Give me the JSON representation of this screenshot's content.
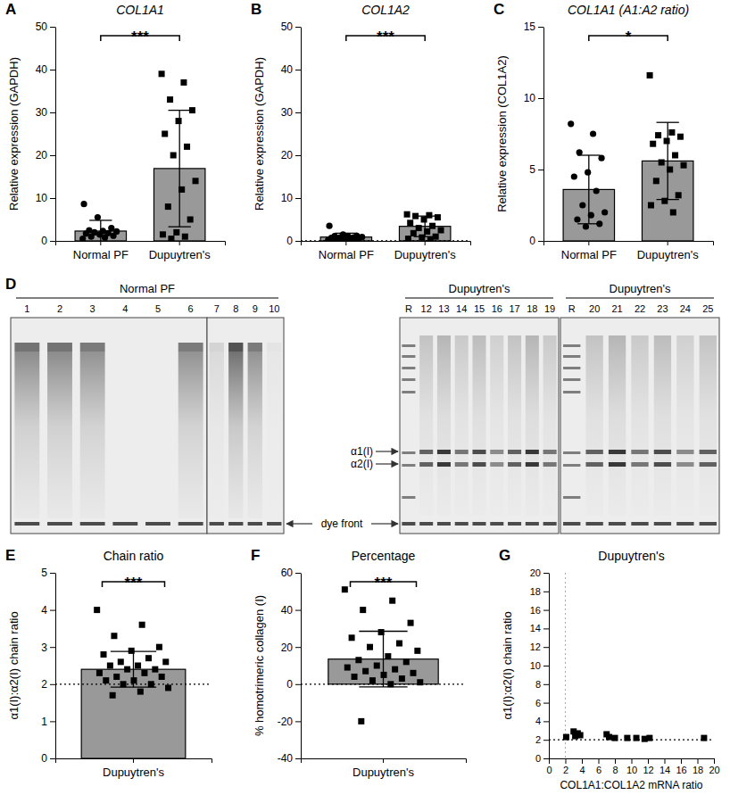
{
  "chart_data": [
    {
      "type": "bar",
      "panel": "A",
      "title": "COL1A1",
      "ylabel": "Relative expression (GAPDH)",
      "color": "#999999",
      "ylim": [
        0,
        50
      ],
      "yticks": [
        0,
        10,
        20,
        30,
        40,
        50
      ],
      "annotation": "***",
      "series": [
        {
          "name": "Normal PF",
          "marker": "circle",
          "values": [
            2.3
          ],
          "errors": [
            2.5
          ],
          "points": [
            0.5,
            0.8,
            1.0,
            1.2,
            1.5,
            1.7,
            1.8,
            2.0,
            2.2,
            2.3,
            2.5,
            3.0,
            5.5,
            8.6
          ]
        },
        {
          "name": "Dupuytren's",
          "marker": "square",
          "values": [
            16.9
          ],
          "errors": [
            13.6
          ],
          "points": [
            39,
            37,
            33,
            30.5,
            28,
            25,
            22,
            20,
            14,
            12,
            8,
            5,
            2,
            1.5,
            1,
            0.5
          ]
        }
      ]
    },
    {
      "type": "bar",
      "panel": "B",
      "title": "COL1A2",
      "ylabel": "Relative expression (GAPDH)",
      "color": "#999999",
      "ylim": [
        0,
        50
      ],
      "yticks": [
        0,
        10,
        20,
        30,
        40,
        50
      ],
      "annotation": "***",
      "ref_line": 0,
      "series": [
        {
          "name": "Normal PF",
          "marker": "circle",
          "values": [
            0.9
          ],
          "errors": [
            0.9
          ],
          "points": [
            0.2,
            0.3,
            0.4,
            0.5,
            0.6,
            0.7,
            0.8,
            0.8,
            0.9,
            1.0,
            1.1,
            1.2,
            1.5,
            3.5
          ]
        },
        {
          "name": "Dupuytren's",
          "marker": "square",
          "values": [
            3.4
          ],
          "errors": [
            2.4
          ],
          "points": [
            6.2,
            6.0,
            5.8,
            5.5,
            5.0,
            4.2,
            3.5,
            3.0,
            2.5,
            2.2,
            1.8,
            1.0,
            0.8,
            0.5,
            0.3
          ]
        }
      ]
    },
    {
      "type": "bar",
      "panel": "C",
      "title": "COL1A1 (A1:A2 ratio)",
      "ylabel": "Relative expression (COL1A2)",
      "color": "#999999",
      "ylim": [
        0,
        15
      ],
      "yticks": [
        0,
        5,
        10,
        15
      ],
      "annotation": "*",
      "series": [
        {
          "name": "Normal PF",
          "marker": "circle",
          "values": [
            3.6
          ],
          "errors": [
            2.4
          ],
          "points": [
            8.2,
            7.5,
            6.2,
            5.8,
            4.8,
            4.5,
            3.5,
            2.5,
            2.0,
            1.8,
            1.5,
            1.2,
            1.0
          ]
        },
        {
          "name": "Dupuytren's",
          "marker": "square",
          "values": [
            5.6
          ],
          "errors": [
            2.7
          ],
          "points": [
            11.6,
            7.6,
            7.4,
            7.3,
            7.0,
            6.8,
            6.0,
            5.5,
            5.3,
            5.0,
            4.2,
            3.2,
            2.8,
            2.5,
            2.0
          ]
        }
      ]
    },
    {
      "type": "gel",
      "panel": "D",
      "groups": [
        {
          "label": "Normal PF",
          "panels": [
            [
              "1",
              "2",
              "3",
              "4",
              "5",
              "6"
            ],
            [
              "7",
              "8",
              "9",
              "10"
            ]
          ]
        },
        {
          "label": "Dupuytren's",
          "panels": [
            [
              "R",
              "12",
              "13",
              "14",
              "15",
              "16",
              "17",
              "18",
              "19"
            ]
          ]
        },
        {
          "label": "Dupuytren's",
          "panels": [
            [
              "R",
              "20",
              "21",
              "22",
              "23",
              "24",
              "25"
            ]
          ]
        }
      ],
      "band_labels": [
        "α1(I)",
        "α2(I)"
      ],
      "dye_front": "dye front"
    },
    {
      "type": "bar",
      "panel": "E",
      "title": "Chain ratio",
      "ylabel": "α1(I):α2(I) chain ratio",
      "color": "#999999",
      "ylim": [
        0,
        5
      ],
      "yticks": [
        0,
        1,
        2,
        3,
        4,
        5
      ],
      "annotation": "***",
      "ref_line": 2,
      "series": [
        {
          "name": "Dupuytren's",
          "marker": "square",
          "values": [
            2.4
          ],
          "errors": [
            0.48
          ],
          "points": [
            4.0,
            3.6,
            3.3,
            3.0,
            2.9,
            2.8,
            2.7,
            2.6,
            2.6,
            2.5,
            2.5,
            2.4,
            2.4,
            2.3,
            2.3,
            2.2,
            2.2,
            2.1,
            2.1,
            2.0,
            2.0,
            1.9,
            1.8,
            1.7
          ]
        }
      ]
    },
    {
      "type": "bar",
      "panel": "F",
      "title": "Percentage",
      "ylabel": "% homotrimeric collagen (I)",
      "color": "#999999",
      "ylim": [
        -40,
        60
      ],
      "yticks": [
        -40,
        -20,
        0,
        20,
        40,
        60
      ],
      "annotation": "***",
      "ref_line": 0,
      "series": [
        {
          "name": "Dupuytren's",
          "marker": "square",
          "values": [
            13.5
          ],
          "errors": [
            15
          ],
          "points": [
            51,
            45,
            40,
            33,
            28,
            25,
            22,
            20,
            18,
            15,
            13,
            12,
            10,
            9,
            8,
            7,
            6,
            5,
            4,
            3,
            2,
            1,
            0,
            -20
          ]
        }
      ]
    },
    {
      "type": "scatter",
      "panel": "G",
      "title": "Dupuytren's",
      "xlabel": "COL1A1:COL1A2 mRNA ratio",
      "ylabel": "α1(I):α2(I) chain ratio",
      "color": "#000000",
      "marker": "square",
      "xlim": [
        0,
        20
      ],
      "xticks": [
        0,
        2,
        4,
        6,
        8,
        10,
        12,
        14,
        16,
        18,
        20
      ],
      "ylim": [
        0,
        20
      ],
      "yticks": [
        0,
        2,
        4,
        6,
        8,
        10,
        12,
        14,
        16,
        18,
        20
      ],
      "ref_line": 2,
      "ref_line_x": 2,
      "x": [
        2.1,
        3.0,
        3.2,
        3.3,
        3.5,
        3.8,
        7.0,
        7.3,
        8.0,
        9.5,
        10.6,
        11.6,
        12.2,
        18.8
      ],
      "values": [
        2.3,
        2.9,
        2.4,
        2.6,
        2.7,
        2.5,
        2.6,
        2.3,
        2.2,
        2.2,
        2.2,
        2.1,
        2.2,
        2.2
      ]
    }
  ]
}
